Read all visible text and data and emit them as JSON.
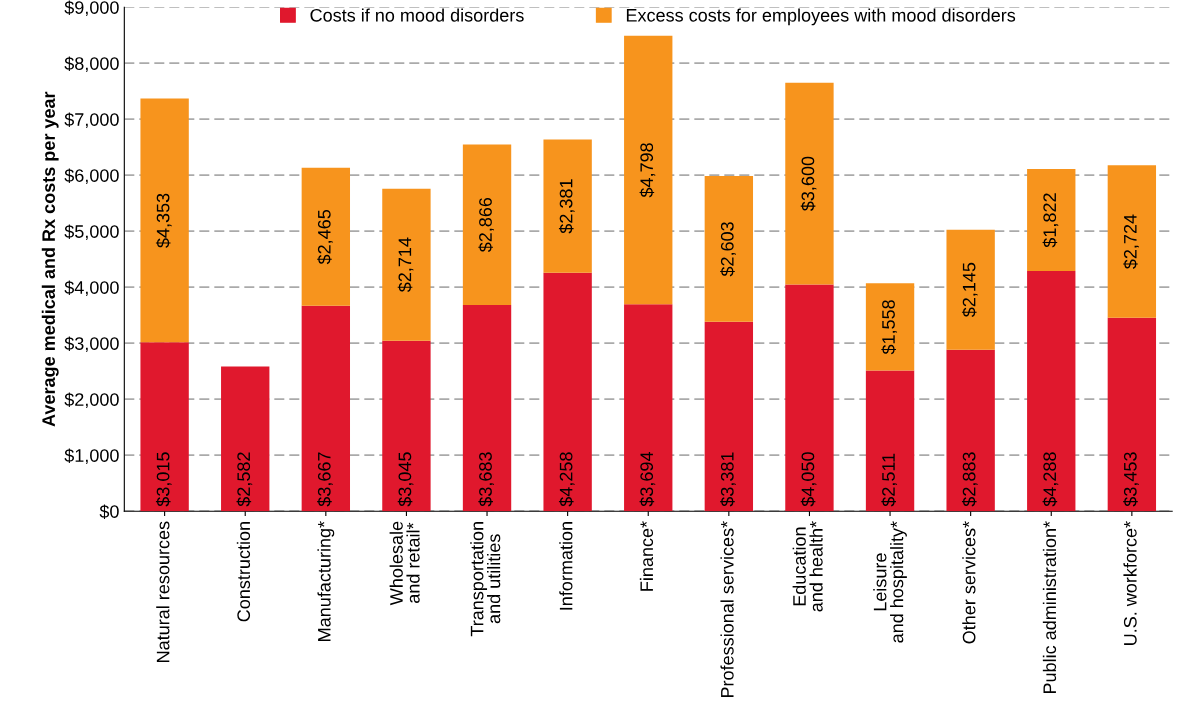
{
  "chart_data": {
    "type": "bar",
    "stacked": true,
    "ylabel": "Average medical and Rx costs per year",
    "categories": [
      "Natural resources",
      "Construction",
      "Manufacturing*",
      "Wholesale\nand retail*",
      "Transportation\nand utilities",
      "Information",
      "Finance*",
      "Professional services*",
      "Education\nand health*",
      "Leisure\nand hospitality*",
      "Other services*",
      "Public administration*",
      "U.S. workforce*"
    ],
    "series": [
      {
        "name": "Costs if no mood disorders",
        "color": "#e0182d",
        "values": [
          3015,
          2582,
          3667,
          3045,
          3683,
          4258,
          3694,
          3381,
          4050,
          2511,
          2883,
          4288,
          3453
        ],
        "value_labels": [
          "$3,015",
          "$2,582",
          "$3,667",
          "$3,045",
          "$3,683",
          "$4,258",
          "$3,694",
          "$3,381",
          "$4,050",
          "$2,511",
          "$2,883",
          "$4,288",
          "$3,453"
        ]
      },
      {
        "name": "Excess costs for employees with mood disorders",
        "color": "#f7941d",
        "values": [
          4353,
          null,
          2465,
          2714,
          2866,
          2381,
          4798,
          2603,
          3600,
          1558,
          2145,
          1822,
          2724
        ],
        "value_labels": [
          "$4,353",
          null,
          "$2,465",
          "$2,714",
          "$2,866",
          "$2,381",
          "$4,798",
          "$2,603",
          "$3,600",
          "$1,558",
          "$2,145",
          "$1,822",
          "$2,724"
        ]
      }
    ],
    "ylim": [
      0,
      9000
    ],
    "yticks": [
      {
        "value": 0,
        "label": "$0"
      },
      {
        "value": 1000,
        "label": "$1,000"
      },
      {
        "value": 2000,
        "label": "$2,000"
      },
      {
        "value": 3000,
        "label": "$3,000"
      },
      {
        "value": 4000,
        "label": "$4,000"
      },
      {
        "value": 5000,
        "label": "$5,000"
      },
      {
        "value": 6000,
        "label": "$6,000"
      },
      {
        "value": 7000,
        "label": "$7,000"
      },
      {
        "value": 8000,
        "label": "$8,000"
      },
      {
        "value": 9000,
        "label": "$9,000"
      }
    ],
    "grid": "y",
    "legend": "top"
  }
}
